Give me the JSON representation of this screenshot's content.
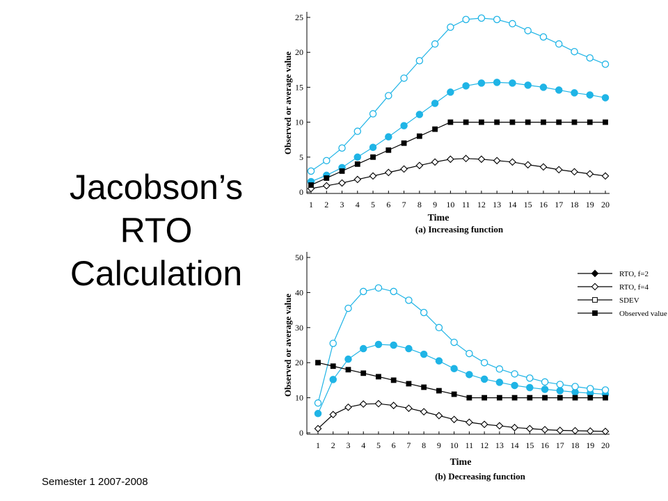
{
  "slide": {
    "title_lines": [
      "Jacobson’s",
      "RTO",
      "Calculation"
    ],
    "footer": "Semester 1 2007-2008"
  },
  "colors": {
    "accent": "#1fb4e6",
    "black": "#000000"
  },
  "chart_data": [
    {
      "type": "line",
      "ylabel": "Observed or average value",
      "xlabel": "Time",
      "caption": "(a) Increasing function",
      "x": [
        1,
        2,
        3,
        4,
        5,
        6,
        7,
        8,
        9,
        10,
        11,
        12,
        13,
        14,
        15,
        16,
        17,
        18,
        19,
        20
      ],
      "xlim": [
        1,
        20
      ],
      "ylim": [
        0,
        25
      ],
      "yticks": [
        0,
        5,
        10,
        15,
        20,
        25
      ],
      "grid": false,
      "legend_position": "top-left",
      "series": [
        {
          "name": "RTO, f=2",
          "marker": "filled-circle",
          "color": "#1fb4e6",
          "values": [
            1.5,
            2.4,
            3.5,
            5.0,
            6.4,
            7.9,
            9.5,
            11.1,
            12.7,
            14.3,
            15.2,
            15.6,
            15.7,
            15.6,
            15.3,
            15.0,
            14.6,
            14.2,
            13.9,
            13.5
          ]
        },
        {
          "name": "RTO, f=4",
          "marker": "open-circle",
          "color": "#1fb4e6",
          "values": [
            3.0,
            4.5,
            6.3,
            8.7,
            11.2,
            13.8,
            16.3,
            18.8,
            21.2,
            23.6,
            24.7,
            24.9,
            24.7,
            24.1,
            23.1,
            22.2,
            21.2,
            20.1,
            19.2,
            18.3
          ]
        },
        {
          "name": "SDEV",
          "marker": "open-diamond",
          "color": "#000000",
          "values": [
            0.5,
            0.9,
            1.3,
            1.8,
            2.3,
            2.8,
            3.3,
            3.8,
            4.3,
            4.7,
            4.8,
            4.7,
            4.5,
            4.3,
            3.9,
            3.6,
            3.2,
            2.9,
            2.6,
            2.3
          ]
        },
        {
          "name": "Observed value",
          "marker": "filled-square",
          "color": "#000000",
          "values": [
            1,
            2,
            3,
            4,
            5,
            6,
            7,
            8,
            9,
            10,
            10,
            10,
            10,
            10,
            10,
            10,
            10,
            10,
            10,
            10
          ]
        }
      ]
    },
    {
      "type": "line",
      "ylabel": "Observed or average value",
      "xlabel": "Time",
      "caption": "(b) Decreasing function",
      "x": [
        1,
        2,
        3,
        4,
        5,
        6,
        7,
        8,
        9,
        10,
        11,
        12,
        13,
        14,
        15,
        16,
        17,
        18,
        19,
        20
      ],
      "xlim": [
        1,
        20
      ],
      "ylim": [
        0,
        50
      ],
      "yticks": [
        0,
        10,
        20,
        30,
        40,
        50
      ],
      "grid": false,
      "legend_position": "top-right",
      "series": [
        {
          "name": "RTO, f=2",
          "marker": "filled-circle",
          "color": "#1fb4e6",
          "values": [
            5.5,
            15.2,
            21.0,
            24.0,
            25.2,
            25.0,
            24.0,
            22.4,
            20.5,
            18.3,
            16.6,
            15.3,
            14.4,
            13.5,
            12.9,
            12.4,
            12.0,
            11.6,
            11.3,
            11.0
          ]
        },
        {
          "name": "RTO, f=4",
          "marker": "open-circle",
          "color": "#1fb4e6",
          "values": [
            8.5,
            25.5,
            35.5,
            40.3,
            41.3,
            40.3,
            37.8,
            34.3,
            30.0,
            25.8,
            22.6,
            20.0,
            18.2,
            16.8,
            15.6,
            14.5,
            13.8,
            13.2,
            12.6,
            12.2
          ]
        },
        {
          "name": "SDEV",
          "marker": "open-diamond",
          "color": "#000000",
          "values": [
            1.2,
            5.2,
            7.3,
            8.2,
            8.3,
            7.8,
            7.0,
            6.0,
            4.9,
            3.8,
            3.0,
            2.4,
            2.0,
            1.5,
            1.2,
            0.9,
            0.7,
            0.6,
            0.5,
            0.4
          ]
        },
        {
          "name": "Observed value",
          "marker": "filled-square",
          "color": "#000000",
          "values": [
            20,
            19,
            18,
            17,
            16,
            15,
            14,
            13,
            12,
            11,
            10,
            10,
            10,
            10,
            10,
            10,
            10,
            10,
            10,
            10
          ]
        }
      ],
      "secondary_legend": [
        "RTO, f=2",
        "RTO, f=4",
        "SDEV",
        "Observed value"
      ]
    }
  ]
}
